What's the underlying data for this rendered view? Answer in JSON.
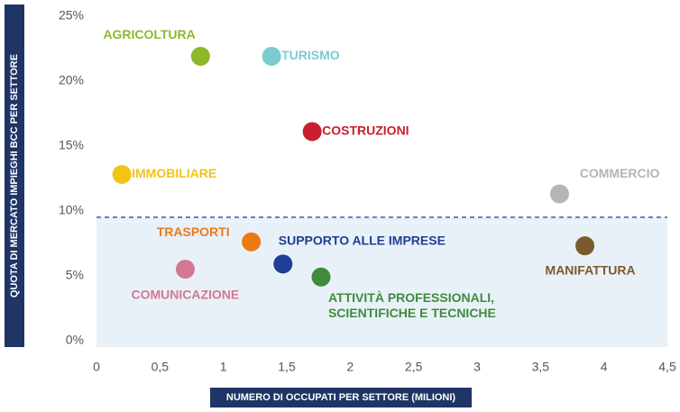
{
  "chart_data": {
    "type": "scatter",
    "y_axis_label": "QUOTA DI MERCATO IMPIEGHI BCC PER SETTORE",
    "x_axis_label": "NUMERO DI OCCUPATI PER SETTORE (MILIONI)",
    "xlim": [
      0,
      4.5
    ],
    "xticks": [
      0,
      {
        "value": 0.5,
        "label": "0,5"
      },
      1,
      {
        "value": 1.5,
        "label": "1,5"
      },
      2,
      {
        "value": 2.5,
        "label": "2,5"
      },
      3,
      {
        "value": 3.5,
        "label": "3,5"
      },
      4,
      {
        "value": 4.5,
        "label": "4,5"
      }
    ],
    "ylim": [
      0,
      25
    ],
    "yticks": [
      {
        "value": 0,
        "label": "0%"
      },
      {
        "value": 5,
        "label": "5%"
      },
      {
        "value": 10,
        "label": "10%"
      },
      {
        "value": 15,
        "label": "15%"
      },
      {
        "value": 20,
        "label": "20%"
      },
      {
        "value": 25,
        "label": "25%"
      }
    ],
    "threshold": 10,
    "points": [
      {
        "label": [
          "AGRICOLTURA"
        ],
        "x": 0.82,
        "y": 22.4,
        "color": "#8cb82b"
      },
      {
        "label": [
          "TURISMO"
        ],
        "x": 1.38,
        "y": 22.4,
        "color": "#7ccbd0"
      },
      {
        "label": [
          "COSTRUZIONI"
        ],
        "x": 1.7,
        "y": 16.6,
        "color": "#c8202f"
      },
      {
        "label": [
          "IMMOBILIARE"
        ],
        "x": 0.2,
        "y": 13.3,
        "color": "#f2c414"
      },
      {
        "label": [
          "COMMERCIO"
        ],
        "x": 3.65,
        "y": 11.8,
        "color": "#b5b5b5"
      },
      {
        "label": [
          "TRASPORTI"
        ],
        "x": 1.22,
        "y": 8.1,
        "color": "#ec7a14"
      },
      {
        "label": [
          "SUPPORTO ALLE IMPRESE"
        ],
        "x": 1.47,
        "y": 6.4,
        "color": "#1f3f95"
      },
      {
        "label": [
          "MANIFATTURA"
        ],
        "x": 3.85,
        "y": 7.8,
        "color": "#7b5a2e"
      },
      {
        "label": [
          "COMUNICAZIONE"
        ],
        "x": 0.7,
        "y": 6.0,
        "color": "#d27893"
      },
      {
        "label": [
          "ATTIVITÀ PROFESSIONALI,",
          "SCIENTIFICHE E TECNICHE"
        ],
        "x": 1.77,
        "y": 5.4,
        "color": "#3f8c3c"
      }
    ]
  }
}
